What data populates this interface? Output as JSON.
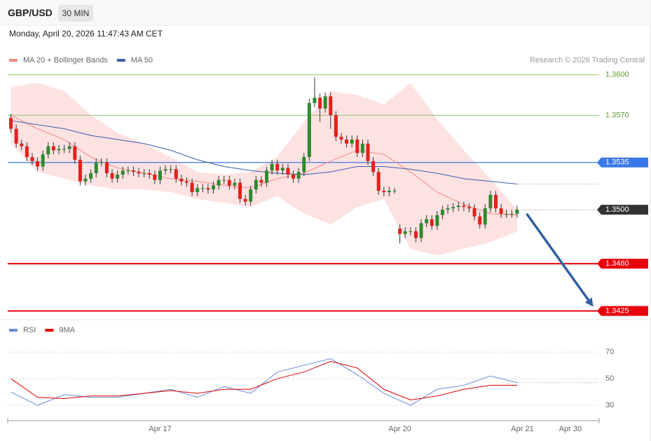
{
  "chart_data": [
    {
      "type": "candlestick",
      "title": "GBP/USD",
      "timeframe": "30 MIN",
      "subtitle": "Monday, April 20, 2026 11:47:43 AM CET",
      "source": "Research © 2026 Trading Central",
      "xlim": [
        -0.6,
        110.4
      ],
      "ylim": [
        1.3419,
        1.3605
      ],
      "up_color": "#2f8a2f",
      "down_color": "#e3201b",
      "open": [
        1.3568,
        1.356,
        1.3549,
        1.3547,
        1.3539,
        1.3536,
        1.3532,
        1.3541,
        1.3547,
        1.3544,
        1.3545,
        1.3545,
        1.3547,
        1.3537,
        1.3521,
        1.3523,
        1.3527,
        1.3535,
        1.3535,
        1.3527,
        1.3523,
        1.3526,
        1.3529,
        1.3529,
        1.3528,
        1.3527,
        1.3527,
        1.3526,
        1.3522,
        1.3529,
        1.353,
        1.353,
        1.3523,
        1.3521,
        1.352,
        1.3513,
        1.3516,
        1.3516,
        1.3515,
        1.3518,
        1.3522,
        1.3522,
        1.3518,
        1.352,
        1.3508,
        1.3506,
        1.3515,
        1.3522,
        1.352,
        1.3529,
        1.3534,
        1.3529,
        1.3531,
        1.3526,
        1.3523,
        1.3528,
        1.3539,
        1.3579,
        1.3583,
        1.3575,
        1.3584,
        1.357,
        1.3554,
        1.3552,
        1.3549,
        1.3552,
        1.3542,
        1.3549,
        1.3536,
        1.3528,
        1.3514,
        1.3513,
        1.3514,
        1.3486,
        1.3482,
        1.3484,
        1.3484,
        1.3479,
        1.349,
        1.3493,
        1.3488,
        1.3496,
        1.35,
        1.3501,
        1.3502,
        1.3503,
        1.3502,
        1.3501,
        1.3495,
        1.3489,
        1.3501,
        1.3511,
        1.3501,
        1.3497,
        1.3497,
        1.3497
      ],
      "high": [
        1.3571,
        1.3563,
        1.3552,
        1.355,
        1.3542,
        1.3539,
        1.3544,
        1.355,
        1.355,
        1.3548,
        1.3548,
        1.355,
        1.355,
        1.354,
        1.3526,
        1.353,
        1.3538,
        1.3538,
        1.3538,
        1.353,
        1.3529,
        1.3532,
        1.3532,
        1.3532,
        1.3531,
        1.353,
        1.353,
        1.3529,
        1.3532,
        1.3533,
        1.3533,
        1.3533,
        1.3526,
        1.3524,
        1.3523,
        1.3519,
        1.3519,
        1.3519,
        1.3521,
        1.3525,
        1.3525,
        1.3525,
        1.3523,
        1.3523,
        1.3511,
        1.3518,
        1.3525,
        1.3525,
        1.3532,
        1.3537,
        1.3537,
        1.3534,
        1.3534,
        1.3529,
        1.3531,
        1.3542,
        1.3582,
        1.3598,
        1.3586,
        1.3587,
        1.3587,
        1.3573,
        1.3557,
        1.3555,
        1.3555,
        1.3555,
        1.3552,
        1.3552,
        1.3539,
        1.3531,
        1.3517,
        1.3517,
        1.3516,
        1.3489,
        1.3487,
        1.3487,
        1.3487,
        1.3493,
        1.3496,
        1.3496,
        1.3499,
        1.3503,
        1.3504,
        1.3505,
        1.3506,
        1.3506,
        1.3505,
        1.3504,
        1.3498,
        1.3504,
        1.3514,
        1.3514,
        1.3504,
        1.35,
        1.35,
        1.3503
      ],
      "low": [
        1.3557,
        1.3546,
        1.3544,
        1.3536,
        1.3533,
        1.3529,
        1.3529,
        1.3538,
        1.3541,
        1.3541,
        1.3542,
        1.3542,
        1.3534,
        1.3518,
        1.3518,
        1.352,
        1.3524,
        1.3532,
        1.3524,
        1.352,
        1.352,
        1.3523,
        1.3526,
        1.3525,
        1.3524,
        1.3524,
        1.3523,
        1.3519,
        1.3519,
        1.3526,
        1.3527,
        1.352,
        1.3518,
        1.3517,
        1.351,
        1.351,
        1.3513,
        1.3512,
        1.3512,
        1.3515,
        1.3519,
        1.3515,
        1.3515,
        1.3505,
        1.3503,
        1.3503,
        1.3512,
        1.3517,
        1.3517,
        1.3526,
        1.3526,
        1.3526,
        1.3523,
        1.352,
        1.352,
        1.3525,
        1.3536,
        1.3576,
        1.3565,
        1.3572,
        1.356,
        1.3551,
        1.3549,
        1.3546,
        1.3546,
        1.3539,
        1.3539,
        1.3533,
        1.3525,
        1.3511,
        1.351,
        1.351,
        1.3512,
        1.3475,
        1.3479,
        1.3481,
        1.3476,
        1.3476,
        1.3487,
        1.3485,
        1.3485,
        1.3493,
        1.3497,
        1.3498,
        1.3499,
        1.3499,
        1.3498,
        1.3492,
        1.3486,
        1.3486,
        1.3498,
        1.3498,
        1.3494,
        1.3494,
        1.3494,
        1.3494
      ],
      "close": [
        1.356,
        1.3549,
        1.3547,
        1.3539,
        1.3536,
        1.3532,
        1.3541,
        1.3547,
        1.3544,
        1.3545,
        1.3545,
        1.3547,
        1.3537,
        1.3521,
        1.3523,
        1.3527,
        1.3535,
        1.3535,
        1.3527,
        1.3523,
        1.3526,
        1.3529,
        1.3529,
        1.3528,
        1.3527,
        1.3527,
        1.3526,
        1.3522,
        1.3529,
        1.353,
        1.353,
        1.3523,
        1.3521,
        1.352,
        1.3513,
        1.3516,
        1.3516,
        1.3515,
        1.3518,
        1.3522,
        1.3522,
        1.3518,
        1.352,
        1.3508,
        1.3506,
        1.3515,
        1.3522,
        1.352,
        1.3529,
        1.3534,
        1.3529,
        1.3531,
        1.3526,
        1.3523,
        1.3528,
        1.3539,
        1.3579,
        1.3583,
        1.3575,
        1.3584,
        1.357,
        1.3554,
        1.3552,
        1.3549,
        1.3552,
        1.3542,
        1.3549,
        1.3536,
        1.3528,
        1.3514,
        1.3513,
        1.3514,
        1.3514,
        1.3482,
        1.3484,
        1.3484,
        1.3479,
        1.349,
        1.3493,
        1.3488,
        1.3496,
        1.35,
        1.3501,
        1.3502,
        1.3503,
        1.3502,
        1.3501,
        1.3495,
        1.3489,
        1.3501,
        1.3511,
        1.3501,
        1.3497,
        1.3497,
        1.3497,
        1.35
      ],
      "series": [
        {
          "name": "MA 20 + Bollinger Bands",
          "color": "#f28b82",
          "band_color": "#fde2e2",
          "x": [
            0,
            5,
            10,
            15,
            20,
            25,
            30,
            35,
            40,
            45,
            50,
            55,
            60,
            65,
            70,
            75,
            80,
            85,
            90,
            95
          ],
          "values": [
            1.357,
            1.356,
            1.3552,
            1.3539,
            1.3531,
            1.3527,
            1.3523,
            1.3521,
            1.3518,
            1.3516,
            1.3523,
            1.3527,
            1.3536,
            1.3544,
            1.3541,
            1.3528,
            1.3513,
            1.3504,
            1.3497,
            1.3496
          ],
          "upper": [
            1.3591,
            1.3594,
            1.3588,
            1.357,
            1.3557,
            1.3549,
            1.3539,
            1.3528,
            1.3526,
            1.3528,
            1.3539,
            1.3565,
            1.3588,
            1.3585,
            1.3578,
            1.3594,
            1.3567,
            1.3544,
            1.3523,
            1.35
          ],
          "lower": [
            1.3549,
            1.3528,
            1.3523,
            1.3518,
            1.3515,
            1.3515,
            1.3513,
            1.3508,
            1.3505,
            1.3502,
            1.351,
            1.3497,
            1.3489,
            1.3502,
            1.3508,
            1.3471,
            1.3466,
            1.3471,
            1.3476,
            1.3484
          ]
        },
        {
          "name": "MA 50",
          "color": "#3a5ea8",
          "x": [
            0,
            5,
            10,
            15,
            20,
            25,
            30,
            35,
            40,
            45,
            50,
            55,
            60,
            65,
            70,
            75,
            80,
            85,
            90,
            95
          ],
          "values": [
            1.3566,
            1.3563,
            1.356,
            1.3555,
            1.3552,
            1.3549,
            1.3544,
            1.3537,
            1.3532,
            1.3529,
            1.3527,
            1.3526,
            1.3528,
            1.3532,
            1.3532,
            1.353,
            1.3527,
            1.3523,
            1.3521,
            1.3519
          ]
        }
      ],
      "levels": [
        {
          "value": 1.36,
          "label": "1.3600",
          "color": "#8cc866",
          "style": "line"
        },
        {
          "value": 1.357,
          "label": "1.3570",
          "color": "#8cc866",
          "style": "line"
        },
        {
          "value": 1.3535,
          "label": "1.3535",
          "color": "#3b78e7",
          "style": "box"
        },
        {
          "value": 1.35,
          "label": "1.3500",
          "color": "#333333",
          "style": "dotted"
        },
        {
          "value": 1.346,
          "label": "1.3460",
          "color": "#e8000b",
          "style": "thick"
        },
        {
          "value": 1.3425,
          "label": "1.3425",
          "color": "#e8000b",
          "style": "thick"
        }
      ],
      "arrow": {
        "x": [
          96.8,
          109.3
        ],
        "y": [
          1.3497,
          1.3428
        ],
        "color": "#2f5f9f"
      }
    },
    {
      "type": "line",
      "xlim": [
        -0.6,
        110.4
      ],
      "ylim": [
        19.5,
        93.2
      ],
      "yticks": [
        30,
        50,
        70
      ],
      "xticks": [
        {
          "value": 28,
          "label": "Apr 17"
        },
        {
          "value": 73,
          "label": "Apr 20"
        },
        {
          "value": 96,
          "label": "Apr 21"
        },
        {
          "value": 105,
          "label": "Apr 30"
        }
      ],
      "series": [
        {
          "name": "RSI",
          "color": "#6a8ad8",
          "x": [
            0,
            5,
            10,
            15,
            20,
            25,
            30,
            35,
            40,
            45,
            50,
            55,
            60,
            65,
            70,
            75,
            80,
            85,
            90,
            95
          ],
          "values": [
            40,
            30,
            38,
            36,
            36,
            39,
            42,
            36,
            44,
            39,
            55,
            60,
            65,
            53,
            39,
            30,
            42,
            45,
            52,
            47
          ]
        },
        {
          "name": "9MA",
          "color": "#e00000",
          "x": [
            0,
            5,
            10,
            15,
            20,
            25,
            30,
            35,
            40,
            45,
            50,
            55,
            60,
            65,
            70,
            75,
            80,
            85,
            90,
            95
          ],
          "values": [
            50,
            36,
            35,
            37,
            37,
            39,
            41,
            39,
            42,
            42,
            50,
            55,
            63,
            58,
            42,
            34,
            37,
            42,
            45,
            45
          ]
        }
      ]
    }
  ]
}
